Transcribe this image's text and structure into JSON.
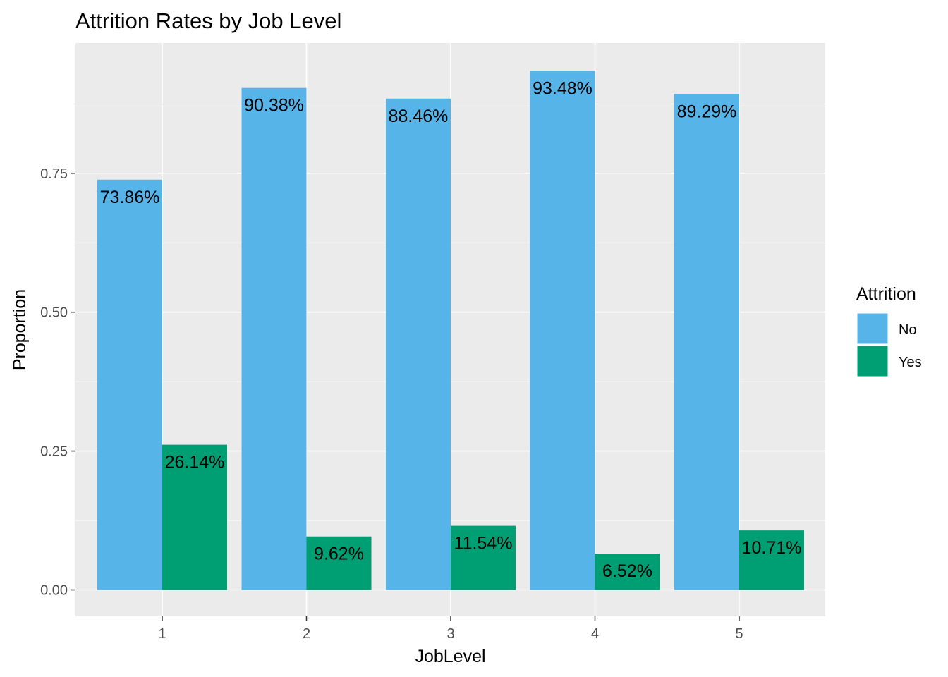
{
  "chart_data": {
    "type": "bar",
    "title": "Attrition Rates by Job Level",
    "xlabel": "JobLevel",
    "ylabel": "Proportion",
    "categories": [
      "1",
      "2",
      "3",
      "4",
      "5"
    ],
    "ylim": [
      0,
      0.97
    ],
    "yticks": [
      0,
      0.25,
      0.5,
      0.75
    ],
    "ytick_labels": [
      "0.00",
      "0.25",
      "0.50",
      "0.75"
    ],
    "grid": true,
    "legend_position": "right",
    "legend_title": "Attrition",
    "series": [
      {
        "name": "No",
        "color": "#56B4E9",
        "values": [
          0.7386,
          0.9038,
          0.8846,
          0.9348,
          0.8929
        ],
        "labels": [
          "73.86%",
          "90.38%",
          "88.46%",
          "93.48%",
          "89.29%"
        ]
      },
      {
        "name": "Yes",
        "color": "#009E73",
        "values": [
          0.2614,
          0.0962,
          0.1154,
          0.0652,
          0.1071
        ],
        "labels": [
          "26.14%",
          "9.62%",
          "11.54%",
          "6.52%",
          "10.71%"
        ]
      }
    ]
  }
}
